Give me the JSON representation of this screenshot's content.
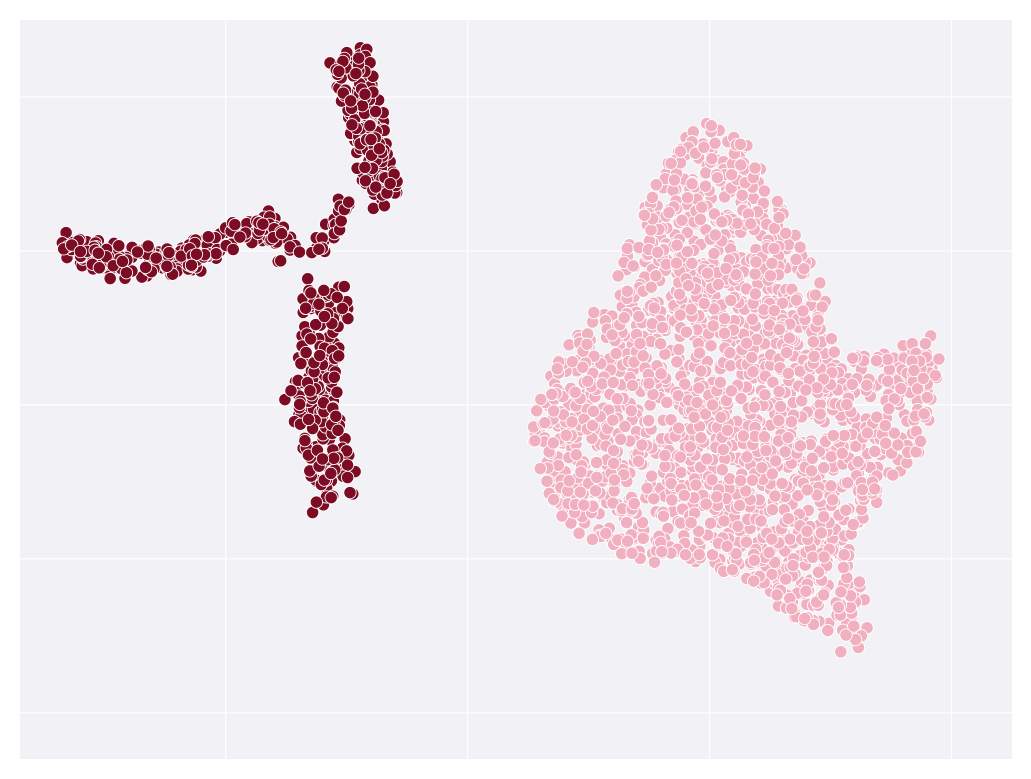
{
  "chart_data": {
    "type": "scatter",
    "title": "",
    "xlabel": "",
    "ylabel": "",
    "grid": true,
    "legend": "none",
    "xlim": [
      -7.5,
      33.5
    ],
    "ylim": [
      -5.5,
      18.5
    ],
    "xticks": [
      1,
      11,
      21,
      31
    ],
    "yticks": [
      -4,
      1,
      6,
      11,
      16
    ],
    "style": {
      "background": "#f2f1f6",
      "grid_color": "#ffffff",
      "point_edge": "#ffffff"
    },
    "series": [
      {
        "color": "#7b0c24",
        "point_count": 680,
        "clusters": [
          {
            "shape": "band",
            "width": 0.9,
            "n": 220,
            "path": [
              [
                -5.9,
                11.3
              ],
              [
                -4.6,
                10.8
              ],
              [
                -3.0,
                10.6
              ],
              [
                -1.3,
                10.6
              ],
              [
                0.2,
                11.0
              ],
              [
                1.6,
                11.6
              ],
              [
                2.6,
                11.9
              ],
              [
                3.2,
                11.5
              ],
              [
                3.7,
                10.9
              ]
            ]
          },
          {
            "shape": "band",
            "width": 1.4,
            "n": 210,
            "path": [
              [
                6.2,
                17.4
              ],
              [
                6.4,
                16.1
              ],
              [
                6.9,
                14.9
              ],
              [
                7.3,
                13.8
              ],
              [
                7.3,
                13.1
              ],
              [
                7.6,
                12.6
              ]
            ]
          },
          {
            "shape": "band",
            "width": 0.3,
            "n": 25,
            "path": [
              [
                6.1,
                12.7
              ],
              [
                5.4,
                11.8
              ],
              [
                4.7,
                10.8
              ]
            ]
          },
          {
            "shape": "band",
            "width": 1.8,
            "n": 225,
            "path": [
              [
                5.3,
                9.8
              ],
              [
                4.9,
                8.3
              ],
              [
                4.6,
                6.8
              ],
              [
                4.8,
                5.3
              ],
              [
                5.4,
                3.8
              ],
              [
                5.6,
                2.8
              ]
            ]
          }
        ]
      },
      {
        "color": "#f0b0c0",
        "point_count": 2000,
        "polygon": [
          [
            13.6,
            4.6
          ],
          [
            13.9,
            6.3
          ],
          [
            15.1,
            7.9
          ],
          [
            16.3,
            9.1
          ],
          [
            17.3,
            10.6
          ],
          [
            18.6,
            12.9
          ],
          [
            19.6,
            14.5
          ],
          [
            20.9,
            15.3
          ],
          [
            22.4,
            14.6
          ],
          [
            23.4,
            13.5
          ],
          [
            24.6,
            11.6
          ],
          [
            25.8,
            9.6
          ],
          [
            26.1,
            7.8
          ],
          [
            27.9,
            7.6
          ],
          [
            29.2,
            8.1
          ],
          [
            30.2,
            8.3
          ],
          [
            30.6,
            7.3
          ],
          [
            29.8,
            4.6
          ],
          [
            28.4,
            3.0
          ],
          [
            27.4,
            2.4
          ],
          [
            26.8,
            1.2
          ],
          [
            27.4,
            -0.2
          ],
          [
            27.6,
            -1.4
          ],
          [
            26.7,
            -2.4
          ],
          [
            25.4,
            -1.4
          ],
          [
            24.1,
            -1.0
          ],
          [
            22.4,
            0.3
          ],
          [
            21.2,
            0.7
          ],
          [
            19.8,
            1.0
          ],
          [
            18.2,
            0.8
          ],
          [
            16.6,
            1.3
          ],
          [
            15.2,
            2.0
          ],
          [
            14.2,
            3.0
          ]
        ]
      }
    ]
  }
}
